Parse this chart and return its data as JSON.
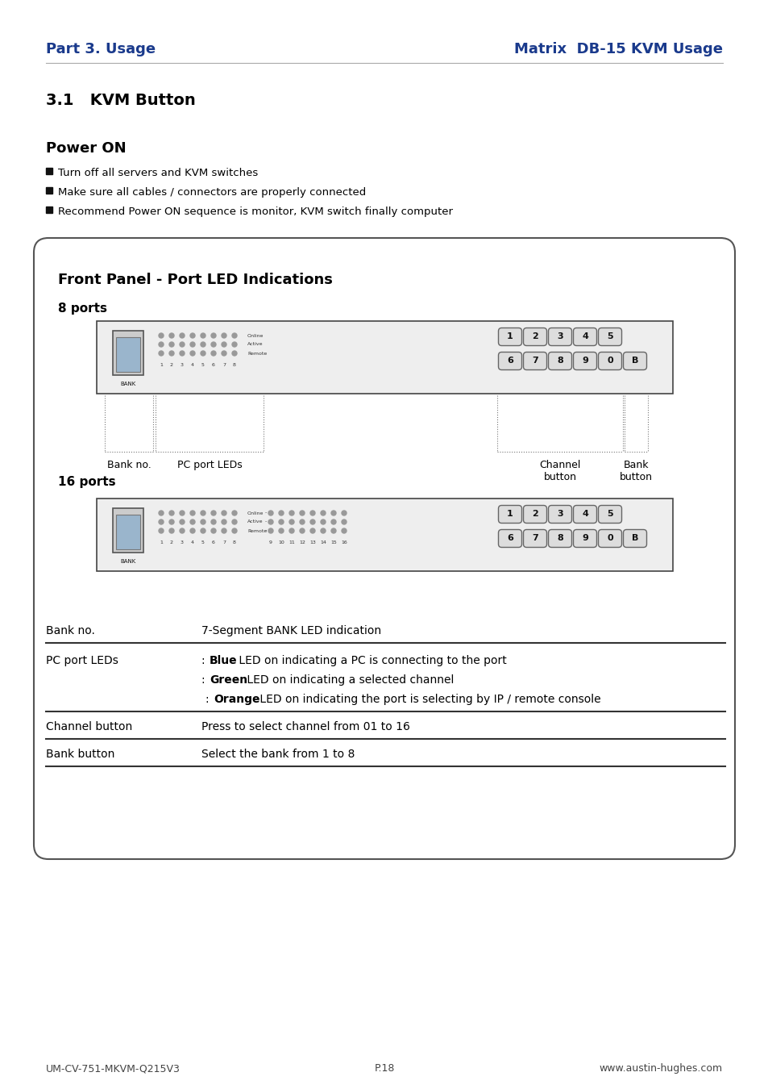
{
  "page_bg": "#ffffff",
  "header_left": "Part 3. Usage",
  "header_right": "Matrix  DB-15 KVM Usage",
  "header_color": "#1a3a8c",
  "section_title": "3.1   KVM Button",
  "section_title_color": "#000000",
  "power_on_title": "Power ON",
  "bullet_items": [
    "Turn off all servers and KVM switches",
    "Make sure all cables / connectors are properly connected",
    "Recommend Power ON sequence is monitor, KVM switch finally computer"
  ],
  "box_title": "Front Panel - Port LED Indications",
  "ports_8_label": "8 ports",
  "ports_16_label": "16 ports",
  "channel_buttons_top": [
    "1",
    "2",
    "3",
    "4",
    "5"
  ],
  "channel_buttons_bottom": [
    "6",
    "7",
    "8",
    "9",
    "0",
    "B"
  ],
  "bank_label_annotation": "Bank no.",
  "pc_led_annotation": "PC port LEDs",
  "channel_btn_annotation": "Channel\nbutton",
  "bank_btn_annotation": "Bank\nbutton",
  "table_bankno_col1": "Bank no.",
  "table_bankno_col2": "7-Segment BANK LED indication",
  "table_pcled_col1": "PC port LEDs",
  "table_blue_pre": ": ",
  "table_blue_bold": "Blue",
  "table_blue_rest": " LED on indicating a PC is connecting to the port",
  "table_green_pre": ": ",
  "table_green_bold": "Green",
  "table_green_rest": " LED on indicating a selected channel",
  "table_orange_pre": ": ",
  "table_orange_bold": "Orange",
  "table_orange_rest": " LED on indicating the port is selecting by IP / remote console",
  "table_chan_col1": "Channel button",
  "table_chan_col2": "Press to select channel from 01 to 16",
  "table_bank_col1": "Bank button",
  "table_bank_col2": "Select the bank from 1 to 8",
  "footer_left": "UM-CV-751-MKVM-Q215V3",
  "footer_center": "P.18",
  "footer_right": "www.austin-hughes.com"
}
